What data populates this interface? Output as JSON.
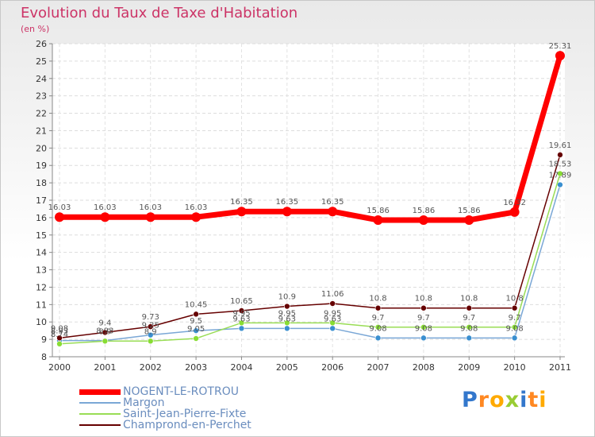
{
  "chart_data": {
    "type": "line",
    "title": "Evolution du Taux de Taxe d'Habitation",
    "unit_label": "(en %)",
    "categories": [
      "2000",
      "2001",
      "2002",
      "2003",
      "2004",
      "2005",
      "2006",
      "2007",
      "2008",
      "2009",
      "2010",
      "2011"
    ],
    "ylim": [
      8,
      26
    ],
    "yticks": [
      "8",
      "9",
      "10",
      "11",
      "12",
      "13",
      "14",
      "15",
      "16",
      "17",
      "18",
      "19",
      "20",
      "21",
      "22",
      "23",
      "24",
      "25",
      "26"
    ],
    "series": [
      {
        "name": "NOGENT-LE-ROTROU",
        "color": "#ff0000",
        "values": [
          16.03,
          16.03,
          16.03,
          16.03,
          16.35,
          16.35,
          16.35,
          15.86,
          15.86,
          15.86,
          16.32,
          25.31
        ],
        "labels": [
          "16.03",
          "16.03",
          "16.03",
          "16.03",
          "16.35",
          "16.35",
          "16.35",
          "15.86",
          "15.86",
          "15.86",
          "16.32",
          "25.31"
        ]
      },
      {
        "name": "Margon",
        "color": "#7aa7d6",
        "values": [
          8.93,
          8.93,
          9.25,
          9.5,
          9.63,
          9.63,
          9.63,
          9.08,
          9.08,
          9.08,
          9.08,
          17.89
        ],
        "labels": [
          "8.93",
          "8.93",
          "9.25",
          "9.5",
          "9.63",
          "9.63",
          "9.63",
          "9.08",
          "9.08",
          "9.08",
          "9.08",
          "17.89"
        ]
      },
      {
        "name": "Saint-Jean-Pierre-Fixte",
        "color": "#99dd55",
        "values": [
          8.74,
          8.9,
          8.9,
          9.05,
          9.95,
          9.95,
          9.95,
          9.7,
          9.7,
          9.7,
          9.7,
          18.53
        ],
        "labels": [
          "8.74",
          "8.9",
          "8.9",
          "9.05",
          "9.95",
          "9.95",
          "9.95",
          "9.7",
          "9.7",
          "9.7",
          "9.7",
          "18.53"
        ]
      },
      {
        "name": "Champrond-en-Perchet",
        "color": "#660000",
        "values": [
          9.08,
          9.4,
          9.73,
          10.45,
          10.65,
          10.9,
          11.06,
          10.8,
          10.8,
          10.8,
          10.8,
          19.61
        ],
        "labels": [
          "9.08",
          "9.4",
          "9.73",
          "10.45",
          "10.65",
          "10.9",
          "11.06",
          "10.8",
          "10.8",
          "10.8",
          "10.8",
          "19.61"
        ]
      }
    ],
    "legend_position": "bottom-left",
    "grid": true
  },
  "logo": {
    "letters": [
      {
        "text": "P",
        "color": "#3377cc"
      },
      {
        "text": "r",
        "color": "#ff8822"
      },
      {
        "text": "o",
        "color": "#ffaa00"
      },
      {
        "text": "x",
        "color": "#99cc33"
      },
      {
        "text": "i",
        "color": "#3377cc"
      },
      {
        "text": "t",
        "color": "#ff8822"
      },
      {
        "text": "i",
        "color": "#ffaa00"
      }
    ]
  }
}
